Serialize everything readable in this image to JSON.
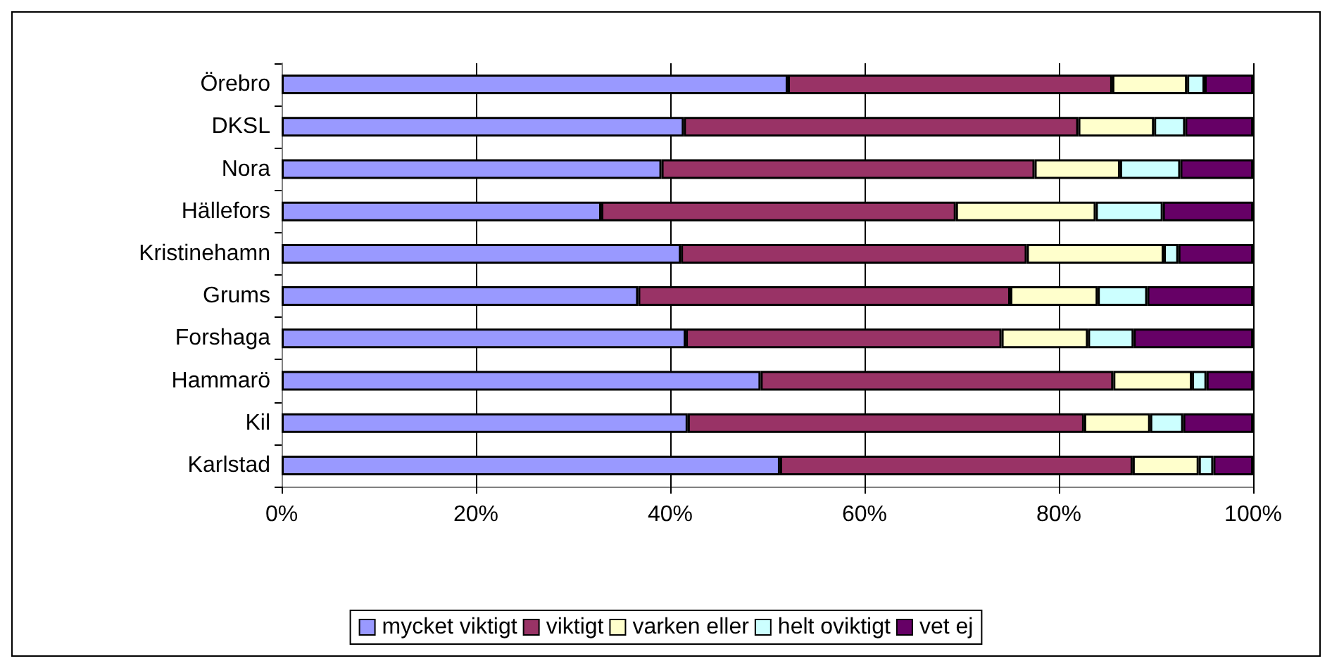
{
  "chart_data": {
    "type": "bar",
    "orientation": "horizontal",
    "stacked": true,
    "categories": [
      "Örebro",
      "DKSL",
      "Nora",
      "Hällefors",
      "Kristinehamn",
      "Grums",
      "Forshaga",
      "Hammarö",
      "Kil",
      "Karlstad"
    ],
    "series": [
      {
        "name": "mycket viktigt",
        "color": "#9999ff",
        "values": [
          52.1,
          41.4,
          39.1,
          32.9,
          41.1,
          36.7,
          41.6,
          49.3,
          41.8,
          51.3
        ]
      },
      {
        "name": "viktigt",
        "color": "#993366",
        "values": [
          33.4,
          40.6,
          38.4,
          36.5,
          35.6,
          38.3,
          32.5,
          36.3,
          40.8,
          36.3
        ]
      },
      {
        "name": "varken eller",
        "color": "#ffffcc",
        "values": [
          7.7,
          7.8,
          8.8,
          14.4,
          14.1,
          9.0,
          8.9,
          8.1,
          6.8,
          6.8
        ]
      },
      {
        "name": "helt oviktigt",
        "color": "#ccffff",
        "values": [
          1.8,
          3.2,
          6.2,
          6.9,
          1.5,
          5.1,
          4.7,
          1.5,
          3.4,
          1.5
        ]
      },
      {
        "name": "vet ej",
        "color": "#660066",
        "values": [
          5.0,
          7.0,
          7.5,
          9.3,
          7.7,
          10.9,
          12.3,
          4.8,
          7.2,
          4.1
        ]
      }
    ],
    "xlim": [
      0,
      100
    ],
    "xticks": [
      {
        "value": 0,
        "label": "0%"
      },
      {
        "value": 20,
        "label": "20%"
      },
      {
        "value": 40,
        "label": "40%"
      },
      {
        "value": 60,
        "label": "60%"
      },
      {
        "value": 80,
        "label": "80%"
      },
      {
        "value": 100,
        "label": "100%"
      }
    ],
    "grid": "x",
    "legend": "bottom"
  }
}
